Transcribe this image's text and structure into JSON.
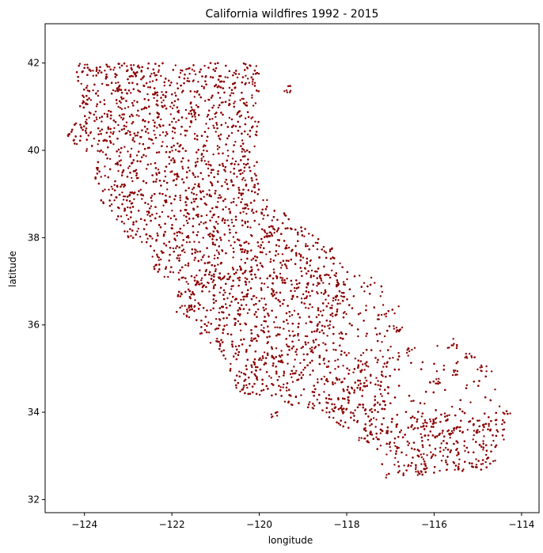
{
  "chart_data": {
    "type": "scatter",
    "title": "California wildfires 1992 - 2015",
    "xlabel": "longitude",
    "ylabel": "latitude",
    "xlim": [
      -124.9,
      -113.6
    ],
    "ylim": [
      31.7,
      42.9
    ],
    "xticks": [
      -124,
      -122,
      -120,
      -118,
      -116,
      -114
    ],
    "yticks": [
      32,
      34,
      36,
      38,
      40,
      42
    ],
    "grid": false,
    "point_color": "#8b0000",
    "series": [
      {
        "outline": [
          [
            -124.2,
            42.0
          ],
          [
            -120.0,
            42.0
          ],
          [
            -120.0,
            39.0
          ],
          [
            -114.6,
            35.0
          ],
          [
            -114.1,
            34.3
          ],
          [
            -114.5,
            33.0
          ],
          [
            -114.7,
            32.7
          ],
          [
            -117.1,
            32.5
          ],
          [
            -117.3,
            33.1
          ],
          [
            -117.9,
            33.6
          ],
          [
            -118.4,
            33.8
          ],
          [
            -118.5,
            34.0
          ],
          [
            -119.2,
            34.15
          ],
          [
            -120.5,
            34.45
          ],
          [
            -120.65,
            34.9
          ],
          [
            -120.9,
            35.4
          ],
          [
            -121.3,
            35.7
          ],
          [
            -121.9,
            36.3
          ],
          [
            -121.95,
            36.6
          ],
          [
            -121.8,
            36.9
          ],
          [
            -122.4,
            37.2
          ],
          [
            -122.5,
            37.8
          ],
          [
            -123.0,
            38.0
          ],
          [
            -123.7,
            38.9
          ],
          [
            -123.8,
            39.8
          ],
          [
            -124.4,
            40.3
          ],
          [
            -124.1,
            41.0
          ],
          [
            -124.2,
            42.0
          ]
        ],
        "extra_points": [
          [
            -115.6,
            35.5
          ],
          [
            -115.2,
            35.3
          ],
          [
            -114.9,
            35.0
          ],
          [
            -115.5,
            34.9
          ],
          [
            -116.0,
            34.7
          ],
          [
            -115.5,
            33.6
          ],
          [
            -115.0,
            33.6
          ],
          [
            -116.0,
            33.8
          ],
          [
            -117.6,
            33.35
          ],
          [
            -119.6,
            33.95
          ],
          [
            -119.4,
            41.4
          ],
          [
            -116.5,
            35.4
          ],
          [
            -116.8,
            35.9
          ],
          [
            -117.2,
            36.2
          ],
          [
            -118.6,
            37.0
          ],
          [
            -118.2,
            36.6
          ]
        ]
      }
    ]
  }
}
